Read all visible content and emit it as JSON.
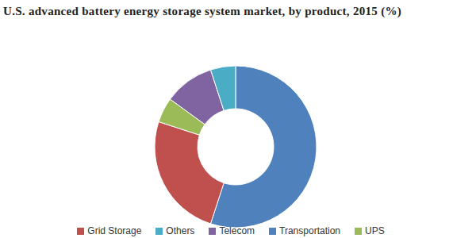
{
  "chart_data": {
    "type": "pie",
    "title": "U.S. advanced battery energy storage system market, by product, 2015 (%)",
    "categories": [
      "Transportation",
      "Grid Storage",
      "UPS",
      "Telecom",
      "Others"
    ],
    "values": [
      55,
      25,
      5,
      10,
      5
    ],
    "colors": [
      "#4f81bd",
      "#c0504d",
      "#9bbb59",
      "#8064a2",
      "#4bacc6"
    ],
    "legend": "bottom"
  }
}
